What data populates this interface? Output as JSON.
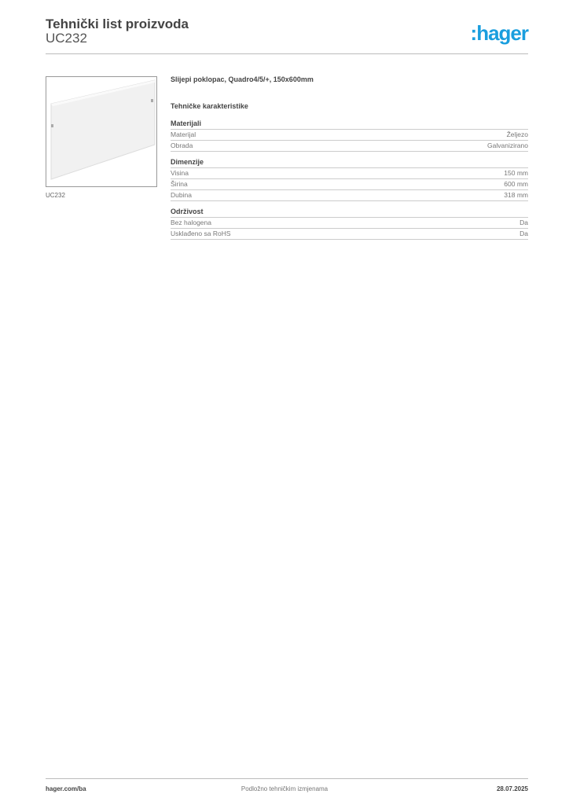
{
  "header": {
    "title": "Tehnički list proizvoda",
    "code": "UC232",
    "logo": ":hager",
    "logo_color": "#1a9ede"
  },
  "product": {
    "image_caption": "UC232",
    "name": "Slijepi poklopac, Quadro4/5/+, 150x600mm",
    "tech_title": "Tehničke karakteristike"
  },
  "sections": [
    {
      "title": "Materijali",
      "rows": [
        {
          "label": "Materijal",
          "value": "Željezo"
        },
        {
          "label": "Obrada",
          "value": "Galvanizirano"
        }
      ]
    },
    {
      "title": "Dimenzije",
      "rows": [
        {
          "label": "Visina",
          "value": "150 mm"
        },
        {
          "label": "Širina",
          "value": "600 mm"
        },
        {
          "label": "Dubina",
          "value": "318 mm"
        }
      ]
    },
    {
      "title": "Održivost",
      "rows": [
        {
          "label": "Bez halogena",
          "value": "Da"
        },
        {
          "label": "Usklađeno sa RoHS",
          "value": "Da"
        }
      ]
    }
  ],
  "footer": {
    "website": "hager.com/ba",
    "note": "Podložno tehničkim izmjenama",
    "date": "28.07.2025"
  }
}
